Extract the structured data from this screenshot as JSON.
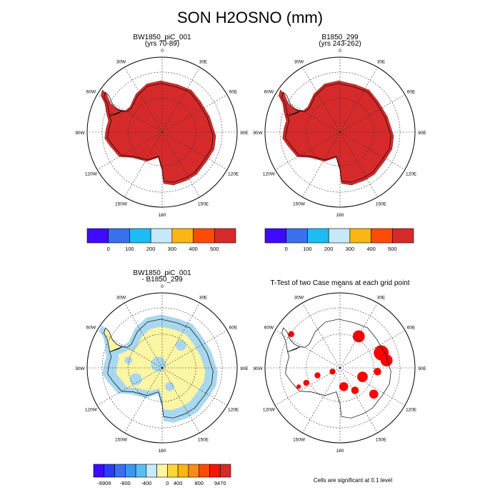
{
  "title": "SON H2OSNO (mm)",
  "panels": [
    {
      "id": "case1",
      "title": "BW1850_piC_001",
      "subtitle": "(yrs 70-89)",
      "type": "map",
      "fill_color": "#d62a2a"
    },
    {
      "id": "case2",
      "title": "B1850_299",
      "subtitle": "(yrs 243-262)",
      "type": "map",
      "fill_color": "#d62a2a"
    },
    {
      "id": "diff",
      "title": "BW1850_piC_001",
      "subtitle": "- B1850_299",
      "type": "map",
      "fill_color": "#fcf5a3",
      "secondary_fill_color": "#a8d8ef"
    },
    {
      "id": "ttest",
      "title": "T-Test of two Case means at each grid point",
      "subtitle": "",
      "type": "map",
      "fill_color": "#ff0000"
    }
  ],
  "polar_labels": {
    "top": "0",
    "bottom": "180",
    "left": "90W",
    "right": "90E",
    "upper_left_1": "30W",
    "upper_left_2": "60W",
    "upper_right_1": "30E",
    "upper_right_2": "60E",
    "lower_left_1": "150W",
    "lower_left_2": "120W",
    "lower_right_1": "150E",
    "lower_right_2": "120E"
  },
  "colorbar_top": {
    "colors": [
      "#3e0bff",
      "#3a6ff0",
      "#1cbcf5",
      "#c6e8f8",
      "#fbb614",
      "#ff4a08",
      "#d62a2a"
    ],
    "labels": [
      "0",
      "100",
      "200",
      "300",
      "400",
      "500"
    ]
  },
  "colorbar_diff": {
    "colors": [
      "#3e0bff",
      "#2a3cff",
      "#3a6ff0",
      "#3d95f5",
      "#5bbef2",
      "#c9ebf9",
      "#fcf5a3",
      "#fbd53a",
      "#fbb614",
      "#ff8c1a",
      "#ff4a08",
      "#f01808",
      "#d62a2a"
    ],
    "labels": [
      "-9909",
      "-800",
      "-400",
      "0",
      "400",
      "800",
      "9470"
    ]
  },
  "footnote": "Cells are significant at 0.1 level",
  "chart_data": [
    {
      "type": "map",
      "title": "BW1850_piC_001",
      "subtitle": "(yrs 70-89)",
      "projection": "south-polar-stereographic"
    },
    {
      "type": "map",
      "title": "B1850_299",
      "subtitle": "(yrs 243-262)",
      "projection": "south-polar-stereographic"
    },
    {
      "type": "map",
      "title": "BW1850_piC_001",
      "subtitle": "- B1850_299",
      "projection": "south-polar-stereographic"
    },
    {
      "type": "map",
      "title": "T-Test of two Case means at each grid point",
      "projection": "south-polar-stereographic"
    }
  ]
}
